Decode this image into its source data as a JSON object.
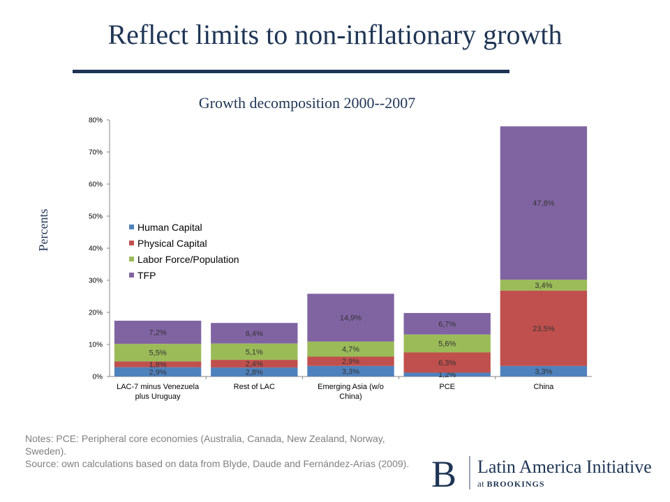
{
  "slide": {
    "title": "Reflect limits to non-inflationary growth"
  },
  "chart_data": {
    "type": "bar",
    "stacked": true,
    "title": "Growth decomposition 2000--2007",
    "ylabel": "Percents",
    "xlabel": "",
    "ylim": [
      0,
      80
    ],
    "yticks": [
      "0%",
      "10%",
      "20%",
      "30%",
      "40%",
      "50%",
      "60%",
      "70%",
      "80%"
    ],
    "categories": [
      [
        "LAC-7 minus Venezuela",
        "plus Uruguay"
      ],
      [
        "Rest of LAC"
      ],
      [
        "Emerging Asia (w/o",
        "China)"
      ],
      [
        "PCE"
      ],
      [
        "China"
      ]
    ],
    "series": [
      {
        "name": "Human Capital",
        "color": "#4f81bd",
        "values": [
          2.9,
          2.8,
          3.3,
          1.2,
          3.3
        ],
        "labels": [
          "2,9%",
          "2,8%",
          "3,3%",
          "1,2%",
          "3,3%"
        ]
      },
      {
        "name": "Physical Capital",
        "color": "#c0504d",
        "values": [
          1.8,
          2.4,
          2.9,
          6.3,
          23.5
        ],
        "labels": [
          "1,8%",
          "2,4%",
          "2,9%",
          "6,3%",
          "23,5%"
        ]
      },
      {
        "name": "Labor Force/Population",
        "color": "#9bbb59",
        "values": [
          5.5,
          5.1,
          4.7,
          5.6,
          3.4
        ],
        "labels": [
          "5,5%",
          "5,1%",
          "4,7%",
          "5,6%",
          "3,4%"
        ]
      },
      {
        "name": "TFP",
        "color": "#8064a2",
        "values": [
          7.2,
          6.4,
          14.9,
          6.7,
          47.8
        ],
        "labels": [
          "7,2%",
          "6,4%",
          "14,9%",
          "6,7%",
          "47,8%"
        ]
      }
    ],
    "legend_position": "left",
    "grid": false
  },
  "notes": {
    "line1": "Notes: PCE: Peripheral core economies (Australia, Canada, New Zealand, Norway, Sweden).",
    "line2": "Source: own calculations based on data from Blyde, Daude and Fernández-Arias (2009)."
  },
  "logo": {
    "initial": "B",
    "name": "Latin America Initiative",
    "sub_prefix": "at",
    "sub_org": "BROOKINGS"
  }
}
